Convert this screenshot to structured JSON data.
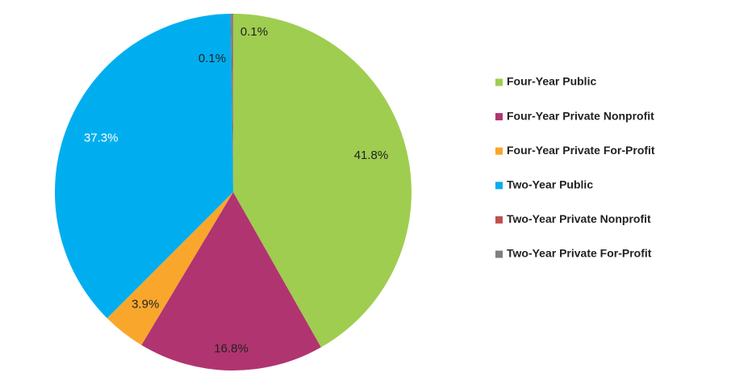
{
  "chart_data": {
    "type": "pie",
    "categories": [
      "Four-Year Public",
      "Four-Year Private Nonprofit",
      "Four-Year Private For-Profit",
      "Two-Year Public",
      "Two-Year Private Nonprofit",
      "Two-Year Private For-Profit"
    ],
    "values": [
      41.8,
      16.8,
      3.9,
      37.3,
      0.1,
      0.1
    ],
    "value_labels": [
      "41.8%",
      "16.8%",
      "3.9%",
      "37.3%",
      "0.1%",
      "0.1%"
    ],
    "colors": [
      "#9fcd50",
      "#b03470",
      "#f8a72c",
      "#00aeef",
      "#c0504d",
      "#7f7f7f"
    ],
    "label_colors": [
      "#222222",
      "#222222",
      "#222222",
      "#ffffff",
      "#222222",
      "#222222"
    ],
    "legend": "right"
  }
}
